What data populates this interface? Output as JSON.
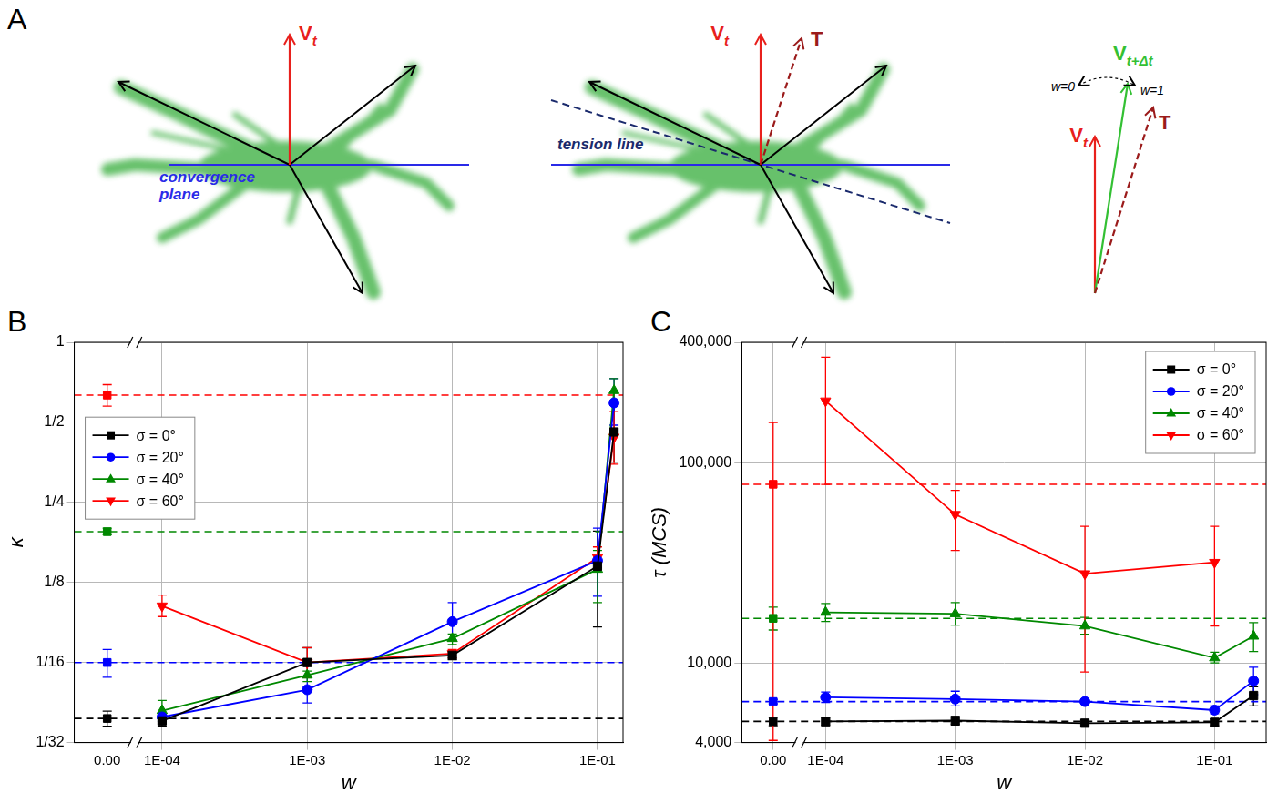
{
  "diagram": {
    "panel": "A",
    "velocity": {
      "text": "V",
      "subscript": "t"
    },
    "new_velocity": {
      "text": "V",
      "subscript": "t+Δt"
    },
    "tension": "T",
    "convergence_plane": "convergence plane",
    "tension_line": "tension line",
    "weight_ends": [
      "w=0",
      "w=1"
    ]
  },
  "chart_data": [
    {
      "panel": "B",
      "type": "line",
      "x_label": "w",
      "y_label": "κ",
      "log": true,
      "grid": true,
      "legend": "upper left",
      "x": [
        0,
        0.0001,
        0.001,
        0.01,
        0.1,
        0.13
      ],
      "xlim": [
        0,
        0.15
      ],
      "xticks": [
        {
          "value": 0,
          "label": "0.00"
        },
        {
          "value": 0.0001,
          "label": "1E-04"
        },
        {
          "value": 0.001,
          "label": "1E-03"
        },
        {
          "value": 0.01,
          "label": "1E-02"
        },
        {
          "value": 0.1,
          "label": "1E-01"
        }
      ],
      "ylim": [
        0.03125,
        1
      ],
      "yticks": [
        {
          "value": 0.03125,
          "label": "1/32"
        },
        {
          "value": 0.0625,
          "label": "1/16"
        },
        {
          "value": 0.125,
          "label": "1/8"
        },
        {
          "value": 0.25,
          "label": "1/4"
        },
        {
          "value": 0.5,
          "label": "1/2"
        },
        1
      ],
      "series": [
        {
          "name": "σ = 0°",
          "color": "#000000",
          "marker": "square",
          "line_style": "solid",
          "values": [
            0.0385,
            0.0377,
            0.0625,
            0.0665,
            0.144,
            0.46
          ],
          "error_low": [
            0.036,
            0.036,
            0.055,
            0.064,
            0.085,
            0.354
          ],
          "error_high": [
            0.041,
            0.04,
            0.071,
            0.069,
            0.195,
            0.58
          ]
        },
        {
          "name": "σ = 20°",
          "color": "#0000ff",
          "marker": "circle",
          "line_style": "solid",
          "values": [
            0.0625,
            0.039,
            0.0494,
            0.089,
            0.151,
            0.592
          ],
          "error_low": [
            0.055,
            0.0375,
            0.044,
            0.076,
            0.111,
            0.488
          ],
          "error_high": [
            0.07,
            0.04,
            0.055,
            0.105,
            0.2,
            0.73
          ]
        },
        {
          "name": "σ = 40°",
          "color": "#008800",
          "marker": "triangle-up",
          "line_style": "solid",
          "values": [
            0.194,
            0.0412,
            0.056,
            0.0769,
            0.14,
            0.658
          ],
          "error_low": [
            0.189,
            0.0377,
            0.053,
            0.073,
            0.105,
            0.592
          ],
          "error_high": [
            0.2,
            0.045,
            0.058,
            0.08,
            0.165,
            0.73
          ]
        },
        {
          "name": "σ = 60°",
          "color": "#ff0000",
          "marker": "triangle-down",
          "line_style": "solid",
          "values": [
            0.633,
            0.102,
            0.0625,
            0.0675,
            0.155,
            0.44
          ],
          "error_low": [
            0.575,
            0.093,
            0.0548,
            0.065,
            0.142,
            0.348
          ],
          "error_high": [
            0.693,
            0.112,
            0.0711,
            0.07,
            0.17,
            0.549
          ]
        }
      ]
    },
    {
      "panel": "C",
      "type": "line",
      "x_label": "w",
      "y_label": "τ (MCS)",
      "log": true,
      "grid": true,
      "legend": "upper right",
      "x": [
        0,
        0.0001,
        0.001,
        0.01,
        0.1,
        0.2
      ],
      "xlim": [
        0,
        0.25
      ],
      "xticks": [
        {
          "value": 0,
          "label": "0.00"
        },
        {
          "value": 0.0001,
          "label": "1E-04"
        },
        {
          "value": 0.001,
          "label": "1E-03"
        },
        {
          "value": 0.01,
          "label": "1E-02"
        },
        {
          "value": 0.1,
          "label": "1E-01"
        }
      ],
      "ylim": [
        4000,
        400000
      ],
      "yticks": [
        {
          "value": 4000,
          "label": "4,000"
        },
        {
          "value": 10000,
          "label": "10,000"
        },
        {
          "value": 100000,
          "label": "100,000"
        },
        {
          "value": 400000,
          "label": "400,000"
        }
      ],
      "series": [
        {
          "name": "σ = 0°",
          "color": "#000000",
          "marker": "square",
          "line_style": "solid",
          "values": [
            5100,
            5100,
            5150,
            5000,
            5050,
            6870
          ],
          "error_low": [
            4850,
            4850,
            4900,
            4800,
            4850,
            6100
          ],
          "error_high": [
            5350,
            5350,
            5400,
            5200,
            5250,
            7590
          ]
        },
        {
          "name": "σ = 20°",
          "color": "#0000ff",
          "marker": "circle",
          "line_style": "solid",
          "values": [
            6410,
            6730,
            6600,
            6410,
            5810,
            8130
          ],
          "error_low": [
            6250,
            6350,
            6100,
            6250,
            5580,
            6940
          ],
          "error_high": [
            6570,
            7150,
            7220,
            6570,
            6100,
            9520
          ]
        },
        {
          "name": "σ = 40°",
          "color": "#008800",
          "marker": "triangle-up",
          "line_style": "solid",
          "values": [
            16700,
            17900,
            17600,
            15300,
            10600,
            13600
          ],
          "error_low": [
            14600,
            16100,
            15450,
            13900,
            10000,
            11400
          ],
          "error_high": [
            19000,
            19800,
            20000,
            16900,
            11300,
            15900
          ]
        },
        {
          "name": "σ = 60°",
          "color": "#ff0000",
          "marker": "triangle-down",
          "line_style": "solid",
          "values": [
            78100,
            203700,
            55200,
            27900,
            31800,
            null
          ],
          "error_low": [
            4100,
            78000,
            36500,
            9000,
            15300,
            null
          ],
          "error_high": [
            159000,
            337000,
            72800,
            48100,
            48100,
            null
          ]
        }
      ]
    }
  ]
}
